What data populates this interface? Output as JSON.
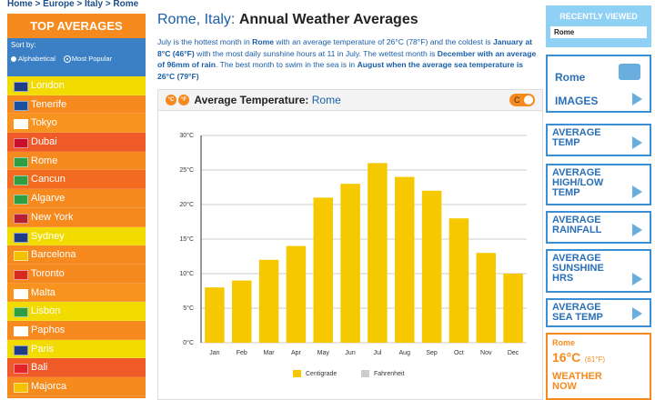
{
  "breadcrumb": "Home > Europe > Italy > Rome",
  "sidebar": {
    "title": "TOP AVERAGES",
    "sort_label": "Sort by:",
    "sort_options": [
      "Alphabetical",
      "Most Popular"
    ],
    "cities": [
      "London",
      "Tenerife",
      "Tokyo",
      "Dubai",
      "Rome",
      "Cancun",
      "Algarve",
      "New York",
      "Sydney",
      "Barcelona",
      "Toronto",
      "Malta",
      "Lisbon",
      "Paphos",
      "Paris",
      "Bali",
      "Majorca"
    ]
  },
  "title": {
    "place": "Rome, Italy:",
    "text": "Annual Weather Averages"
  },
  "paragraph": [
    {
      "text": "July is the hottest month in ",
      "bold": false
    },
    {
      "text": "Rome",
      "bold": true
    },
    {
      "text": " with an average temperature of 26°C (78°F) and the coldest is ",
      "bold": false
    },
    {
      "text": "January at 8°C (46°F)",
      "bold": true
    },
    {
      "text": " with the most daily sunshine hours at 11 in July. The wettest month is ",
      "bold": false
    },
    {
      "text": "December with an average of 96mm of rain",
      "bold": true
    },
    {
      "text": ". The best month to swim in the sea is in ",
      "bold": false
    },
    {
      "text": "August when the average sea temperature is 26°C (79°F)",
      "bold": true
    }
  ],
  "panel": {
    "unit_c": "°C",
    "unit_f": "°F",
    "heading": "Average Temperature:",
    "place": "Rome",
    "toggle": "C"
  },
  "chart": {
    "type": "bar",
    "categories": [
      "Jan",
      "Feb",
      "Mar",
      "Apr",
      "May",
      "Jun",
      "Jul",
      "Aug",
      "Sep",
      "Oct",
      "Nov",
      "Dec"
    ],
    "series": [
      {
        "name": "Centigrade",
        "color": "#f5c800",
        "values": [
          8,
          9,
          12,
          14,
          21,
          23,
          26,
          24,
          22,
          18,
          13,
          10
        ]
      },
      {
        "name": "Fahrenheit",
        "color": "#cccccc",
        "values": null
      }
    ],
    "ylim": [
      0,
      30
    ],
    "yticks": [
      {
        "value": 0,
        "label": "0°C"
      },
      {
        "value": 5,
        "label": "5°C"
      },
      {
        "value": 10,
        "label": "10°C"
      },
      {
        "value": 15,
        "label": "15°C"
      },
      {
        "value": 20,
        "label": "20°C"
      },
      {
        "value": 25,
        "label": "25°C"
      },
      {
        "value": 30,
        "label": "30°C"
      }
    ],
    "grid": true
  },
  "right": {
    "recent_title": "RECENTLY VIEWED",
    "recent": [
      "Rome"
    ],
    "images_place": "Rome",
    "images": "IMAGES",
    "menu": [
      "AVERAGE TEMP",
      "AVERAGE HIGH/LOW TEMP",
      "AVERAGE RAINFALL",
      "AVERAGE SUNSHINE HRS",
      "AVERAGE SEA TEMP"
    ],
    "now_place": "Rome",
    "now_c": "16°C",
    "now_f": "(61°F)",
    "now_label": "WEATHER NOW"
  }
}
